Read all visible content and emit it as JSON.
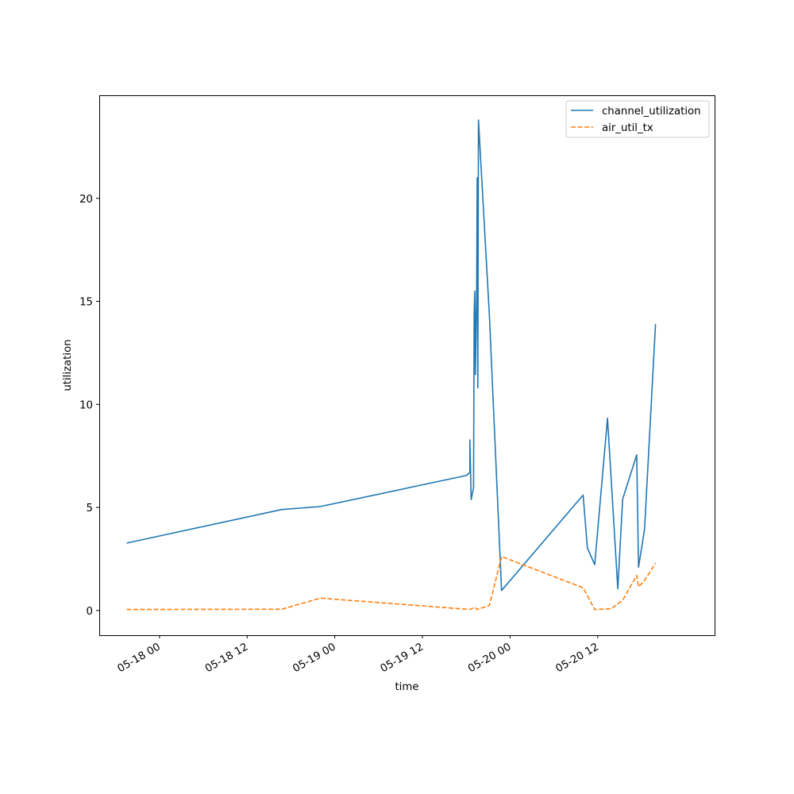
{
  "chart_data": {
    "type": "line",
    "xlabel": "time",
    "ylabel": "utilization",
    "xlim": [
      "2024-05-17 15:45",
      "2024-05-21 04:00"
    ],
    "ylim": [
      -1.2,
      25
    ],
    "x_ticks": [
      {
        "t": "2024-05-18 00:00",
        "label": "05-18 00"
      },
      {
        "t": "2024-05-18 12:00",
        "label": "05-18 12"
      },
      {
        "t": "2024-05-19 00:00",
        "label": "05-19 00"
      },
      {
        "t": "2024-05-19 12:00",
        "label": "05-19 12"
      },
      {
        "t": "2024-05-20 00:00",
        "label": "05-20 00"
      },
      {
        "t": "2024-05-20 12:00",
        "label": "05-20 12"
      }
    ],
    "y_ticks": [
      0,
      5,
      10,
      15,
      20
    ],
    "legend_position": "top-right",
    "series": [
      {
        "name": "channel_utilization",
        "color": "#1f77b4",
        "dash": "solid",
        "points": [
          [
            "2024-05-17 19:30",
            3.27
          ],
          [
            "2024-05-18 16:45",
            4.9
          ],
          [
            "2024-05-18 22:00",
            5.04
          ],
          [
            "2024-05-19 18:00",
            6.55
          ],
          [
            "2024-05-19 18:30",
            6.7
          ],
          [
            "2024-05-19 18:30",
            8.28
          ],
          [
            "2024-05-19 18:40",
            5.38
          ],
          [
            "2024-05-19 19:00",
            5.95
          ],
          [
            "2024-05-19 19:05",
            14.5
          ],
          [
            "2024-05-19 19:10",
            15.5
          ],
          [
            "2024-05-19 19:15",
            11.45
          ],
          [
            "2024-05-19 19:25",
            15.3
          ],
          [
            "2024-05-19 19:30",
            21.0
          ],
          [
            "2024-05-19 19:35",
            10.8
          ],
          [
            "2024-05-19 19:40",
            23.8
          ],
          [
            "2024-05-19 21:10",
            14.3
          ],
          [
            "2024-05-19 22:50",
            0.97
          ],
          [
            "2024-05-20 10:00",
            5.6
          ],
          [
            "2024-05-20 10:35",
            3.03
          ],
          [
            "2024-05-20 11:35",
            2.22
          ],
          [
            "2024-05-20 13:20",
            9.33
          ],
          [
            "2024-05-20 14:45",
            1.05
          ],
          [
            "2024-05-20 15:25",
            5.4
          ],
          [
            "2024-05-20 17:20",
            7.55
          ],
          [
            "2024-05-20 17:35",
            2.1
          ],
          [
            "2024-05-20 18:25",
            3.95
          ],
          [
            "2024-05-20 19:55",
            13.9
          ]
        ]
      },
      {
        "name": "air_util_tx",
        "color": "#ff7f0e",
        "dash": "dashed",
        "points": [
          [
            "2024-05-17 19:30",
            0.05
          ],
          [
            "2024-05-18 16:45",
            0.06
          ],
          [
            "2024-05-18 22:00",
            0.6
          ],
          [
            "2024-05-19 18:30",
            0.05
          ],
          [
            "2024-05-19 19:10",
            0.15
          ],
          [
            "2024-05-19 19:30",
            0.05
          ],
          [
            "2024-05-19 21:10",
            0.25
          ],
          [
            "2024-05-19 22:50",
            2.62
          ],
          [
            "2024-05-20 10:00",
            1.1
          ],
          [
            "2024-05-20 11:35",
            0.05
          ],
          [
            "2024-05-20 13:50",
            0.08
          ],
          [
            "2024-05-20 15:25",
            0.5
          ],
          [
            "2024-05-20 17:20",
            1.7
          ],
          [
            "2024-05-20 17:35",
            1.15
          ],
          [
            "2024-05-20 18:25",
            1.45
          ],
          [
            "2024-05-20 19:55",
            2.3
          ]
        ]
      }
    ]
  }
}
